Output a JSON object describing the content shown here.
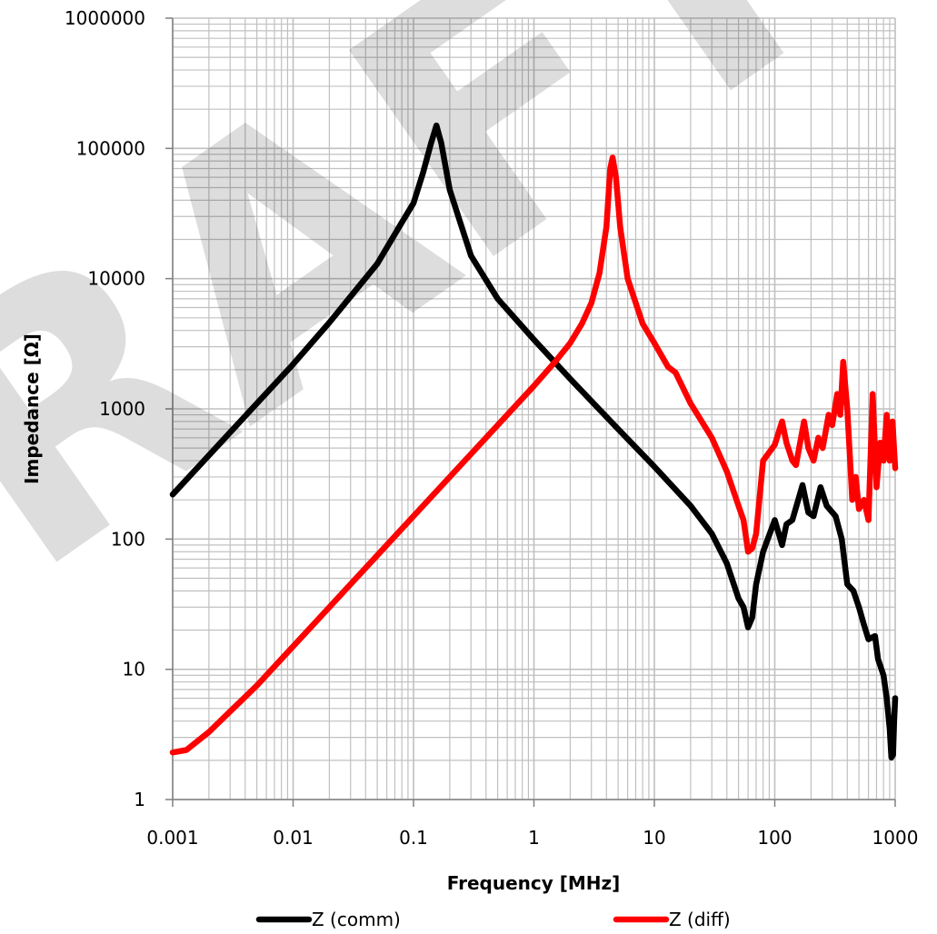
{
  "chart_data": {
    "type": "line",
    "xlabel": "Frequency [MHz]",
    "ylabel": "Impedance [Ω]",
    "x_scale": "log",
    "y_scale": "log",
    "xlim": [
      0.001,
      1000
    ],
    "ylim": [
      1,
      1000000
    ],
    "x_tick_labels": [
      "0.001",
      "0.01",
      "0.1",
      "1",
      "10",
      "100",
      "1000"
    ],
    "y_tick_labels": [
      "1",
      "10",
      "100",
      "1000",
      "10000",
      "100000",
      "1000000"
    ],
    "grid": true,
    "legend_position": "bottom",
    "watermark": "DRAFT",
    "series": [
      {
        "name": "Z (comm)",
        "color": "#000000",
        "points": [
          [
            0.001,
            220
          ],
          [
            0.002,
            440
          ],
          [
            0.005,
            1100
          ],
          [
            0.01,
            2200
          ],
          [
            0.02,
            4600
          ],
          [
            0.05,
            13000
          ],
          [
            0.08,
            27000
          ],
          [
            0.1,
            38000
          ],
          [
            0.12,
            65000
          ],
          [
            0.14,
            110000
          ],
          [
            0.155,
            150000
          ],
          [
            0.17,
            110000
          ],
          [
            0.2,
            48000
          ],
          [
            0.3,
            15000
          ],
          [
            0.5,
            7000
          ],
          [
            1,
            3400
          ],
          [
            2,
            1700
          ],
          [
            5,
            700
          ],
          [
            10,
            360
          ],
          [
            15,
            240
          ],
          [
            20,
            180
          ],
          [
            30,
            110
          ],
          [
            40,
            65
          ],
          [
            50,
            35
          ],
          [
            55,
            30
          ],
          [
            60,
            21
          ],
          [
            65,
            25
          ],
          [
            70,
            45
          ],
          [
            80,
            80
          ],
          [
            100,
            140
          ],
          [
            115,
            90
          ],
          [
            125,
            130
          ],
          [
            140,
            140
          ],
          [
            170,
            260
          ],
          [
            190,
            160
          ],
          [
            210,
            150
          ],
          [
            240,
            250
          ],
          [
            270,
            180
          ],
          [
            320,
            150
          ],
          [
            360,
            100
          ],
          [
            400,
            45
          ],
          [
            450,
            40
          ],
          [
            500,
            30
          ],
          [
            550,
            22
          ],
          [
            600,
            17
          ],
          [
            680,
            18
          ],
          [
            720,
            12
          ],
          [
            800,
            9
          ],
          [
            850,
            6
          ],
          [
            900,
            3.5
          ],
          [
            930,
            2.1
          ],
          [
            960,
            2.2
          ],
          [
            980,
            4
          ],
          [
            1000,
            6
          ]
        ]
      },
      {
        "name": "Z (diff)",
        "color": "#ff0000",
        "points": [
          [
            0.001,
            2.3
          ],
          [
            0.0013,
            2.4
          ],
          [
            0.0016,
            2.8
          ],
          [
            0.002,
            3.3
          ],
          [
            0.005,
            7.5
          ],
          [
            0.01,
            15
          ],
          [
            0.02,
            30
          ],
          [
            0.05,
            75
          ],
          [
            0.1,
            150
          ],
          [
            0.2,
            300
          ],
          [
            0.5,
            750
          ],
          [
            1,
            1500
          ],
          [
            1.5,
            2300
          ],
          [
            2,
            3200
          ],
          [
            2.5,
            4500
          ],
          [
            3,
            6500
          ],
          [
            3.5,
            11000
          ],
          [
            4,
            25000
          ],
          [
            4.3,
            70000
          ],
          [
            4.5,
            85000
          ],
          [
            4.8,
            60000
          ],
          [
            5.2,
            25000
          ],
          [
            6,
            10000
          ],
          [
            8,
            4500
          ],
          [
            10,
            3200
          ],
          [
            13,
            2100
          ],
          [
            15,
            1900
          ],
          [
            20,
            1100
          ],
          [
            30,
            600
          ],
          [
            40,
            330
          ],
          [
            50,
            180
          ],
          [
            55,
            140
          ],
          [
            60,
            80
          ],
          [
            65,
            85
          ],
          [
            70,
            110
          ],
          [
            80,
            400
          ],
          [
            100,
            530
          ],
          [
            115,
            800
          ],
          [
            125,
            550
          ],
          [
            140,
            400
          ],
          [
            150,
            370
          ],
          [
            175,
            800
          ],
          [
            190,
            500
          ],
          [
            210,
            400
          ],
          [
            230,
            600
          ],
          [
            250,
            500
          ],
          [
            280,
            900
          ],
          [
            300,
            750
          ],
          [
            330,
            1300
          ],
          [
            350,
            900
          ],
          [
            370,
            2300
          ],
          [
            400,
            1000
          ],
          [
            440,
            200
          ],
          [
            470,
            300
          ],
          [
            500,
            170
          ],
          [
            550,
            200
          ],
          [
            600,
            140
          ],
          [
            650,
            1300
          ],
          [
            700,
            250
          ],
          [
            750,
            550
          ],
          [
            800,
            400
          ],
          [
            850,
            900
          ],
          [
            900,
            400
          ],
          [
            950,
            800
          ],
          [
            1000,
            350
          ]
        ]
      }
    ]
  }
}
